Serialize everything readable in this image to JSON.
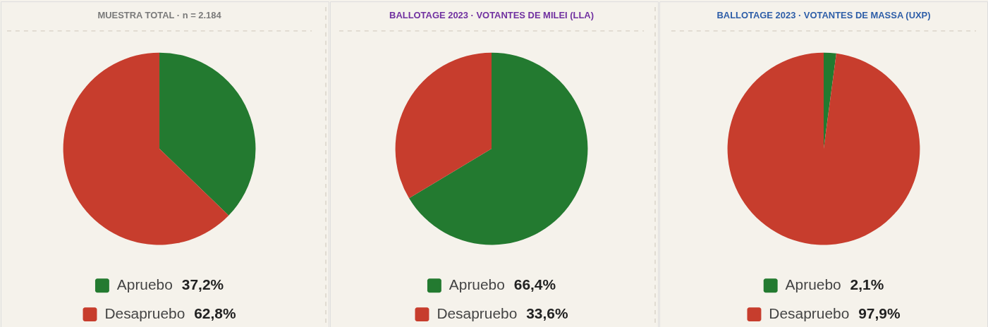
{
  "chart_data": [
    {
      "type": "pie",
      "title": "MUESTRA TOTAL · n = 2.184",
      "categories": [
        "Apruebo",
        "Desapruebo"
      ],
      "values": [
        37.2,
        62.8
      ],
      "colors": [
        "#237a30",
        "#c73d2d"
      ],
      "value_labels": [
        "37,2%",
        "62,8%"
      ],
      "legend": "bottom"
    },
    {
      "type": "pie",
      "title": "BALLOTAGE 2023 · VOTANTES DE MILEI (LLA)",
      "categories": [
        "Apruebo",
        "Desapruebo"
      ],
      "values": [
        66.4,
        33.6
      ],
      "colors": [
        "#237a30",
        "#c73d2d"
      ],
      "value_labels": [
        "66,4%",
        "33,6%"
      ],
      "legend": "bottom"
    },
    {
      "type": "pie",
      "title": "BALLOTAGE 2023 · VOTANTES DE MASSA (UXP)",
      "categories": [
        "Apruebo",
        "Desapruebo"
      ],
      "values": [
        2.1,
        97.9
      ],
      "colors": [
        "#237a30",
        "#c73d2d"
      ],
      "value_labels": [
        "2,1%",
        "97,9%"
      ],
      "legend": "bottom"
    }
  ]
}
